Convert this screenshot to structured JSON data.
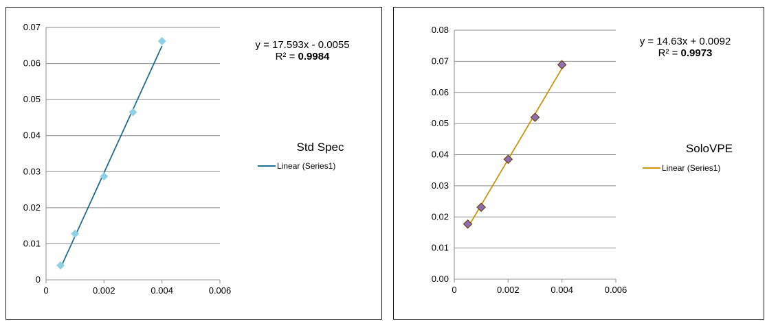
{
  "chart_data": [
    {
      "type": "scatter",
      "title": "Std Spec",
      "xlabel": "",
      "ylabel": "",
      "xlim": [
        0,
        0.006
      ],
      "ylim": [
        0,
        0.07
      ],
      "x_ticks": [
        "0",
        "0.002",
        "0.004",
        "0.006"
      ],
      "y_ticks": [
        "0",
        "0.01",
        "0.02",
        "0.03",
        "0.04",
        "0.05",
        "0.06",
        "0.07"
      ],
      "grid": "horizontal",
      "legend": "right",
      "series": [
        {
          "x": [
            0.0005,
            0.001,
            0.002,
            0.003,
            0.004
          ],
          "y": [
            0.004,
            0.0128,
            0.0287,
            0.0465,
            0.0662
          ],
          "marker": "diamond",
          "color": "#8fd0e4"
        }
      ],
      "trendline": {
        "legend_label": "Linear (Series1)",
        "slope": 17.593,
        "intercept": -0.0055,
        "x_range": [
          0.0005,
          0.004
        ],
        "color": "#1f6d8c",
        "equation_text": "y = 17.593x - 0.0055",
        "r2_label": "R² = ",
        "r2_value": "0.9984"
      }
    },
    {
      "type": "scatter",
      "title": "SoloVPE",
      "xlabel": "",
      "ylabel": "",
      "xlim": [
        0,
        0.006
      ],
      "ylim": [
        0,
        0.08
      ],
      "x_ticks": [
        "0",
        "0.002",
        "0.004",
        "0.006"
      ],
      "y_ticks": [
        "0.00",
        "0.01",
        "0.02",
        "0.03",
        "0.04",
        "0.05",
        "0.06",
        "0.07",
        "0.08"
      ],
      "grid": "horizontal",
      "legend": "right",
      "series": [
        {
          "x": [
            0.0005,
            0.001,
            0.002,
            0.003,
            0.004
          ],
          "y": [
            0.0177,
            0.0231,
            0.0385,
            0.052,
            0.0689
          ],
          "marker": "diamond",
          "color": "#8e6fb5",
          "edge_color": "#6b4310"
        }
      ],
      "trendline": {
        "legend_label": "Linear (Series1)",
        "slope": 14.63,
        "intercept": 0.0092,
        "x_range": [
          0.0005,
          0.004
        ],
        "color": "#c9950c",
        "equation_text": "y = 14.63x + 0.0092",
        "r2_label": "R² = ",
        "r2_value": "0.9973"
      }
    }
  ]
}
